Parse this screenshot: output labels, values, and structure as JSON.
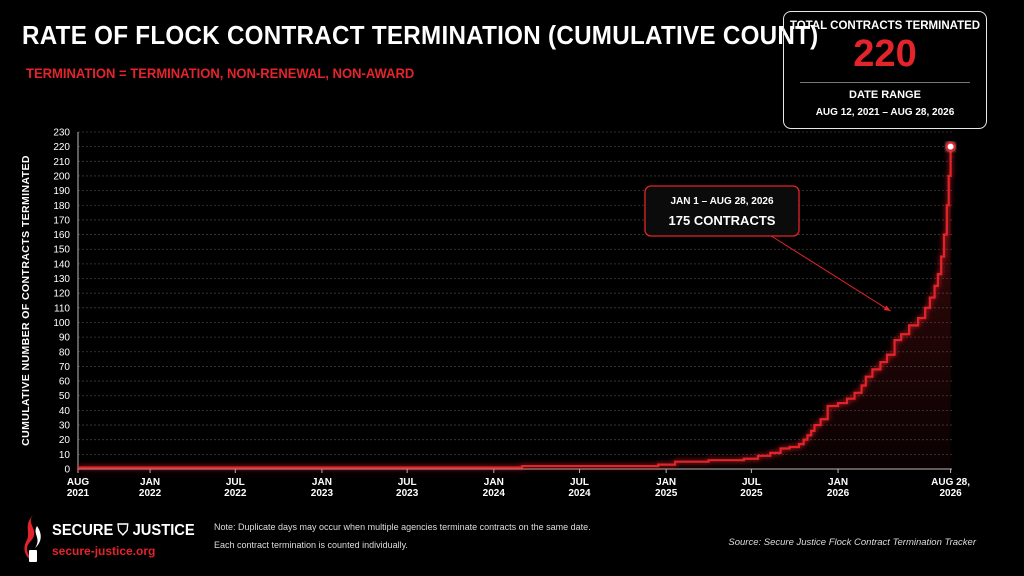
{
  "header": {
    "title": "RATE OF FLOCK CONTRACT TERMINATION (CUMULATIVE COUNT)",
    "subtitle": "TERMINATION = TERMINATION, NON-RENEWAL, NON-AWARD"
  },
  "stat_box": {
    "label": "TOTAL CONTRACTS TERMINATED",
    "value": "220",
    "range_label": "DATE RANGE",
    "range_value": "AUG 12, 2021 – AUG 28, 2026"
  },
  "colors": {
    "accent": "#e4242b",
    "background": "#000000",
    "grid": "#444444"
  },
  "chart_data": {
    "type": "line",
    "title": "RATE OF FLOCK CONTRACT TERMINATION (CUMULATIVE COUNT)",
    "subtitle": "TERMINATION = TERMINATION, NON-RENEWAL, NON-AWARD",
    "ylabel": "CUMULATIVE NUMBER OF CONTRACTS TERMINATED",
    "xlabel": "",
    "ylim": [
      0,
      230
    ],
    "yticks": [
      0,
      10,
      20,
      30,
      40,
      50,
      60,
      70,
      80,
      90,
      100,
      110,
      120,
      130,
      140,
      150,
      160,
      170,
      180,
      190,
      200,
      210,
      220,
      230
    ],
    "xlim": [
      "2021-08-01",
      "2026-08-31"
    ],
    "xticks": [
      {
        "date": "2021-08-01",
        "label": [
          "AUG",
          "2021"
        ]
      },
      {
        "date": "2022-01-01",
        "label": [
          "JAN",
          "2022"
        ]
      },
      {
        "date": "2022-07-01",
        "label": [
          "JUL",
          "2022"
        ]
      },
      {
        "date": "2023-01-01",
        "label": [
          "JAN",
          "2023"
        ]
      },
      {
        "date": "2023-07-01",
        "label": [
          "JUL",
          "2023"
        ]
      },
      {
        "date": "2024-01-01",
        "label": [
          "JAN",
          "2024"
        ]
      },
      {
        "date": "2024-07-01",
        "label": [
          "JUL",
          "2024"
        ]
      },
      {
        "date": "2025-01-01",
        "label": [
          "JAN",
          "2025"
        ]
      },
      {
        "date": "2025-07-01",
        "label": [
          "JUL",
          "2025"
        ]
      },
      {
        "date": "2026-01-01",
        "label": [
          "JAN",
          "2026"
        ]
      },
      {
        "date": "2026-08-28",
        "label": [
          "AUG 28,",
          "2026"
        ]
      }
    ],
    "grid": true,
    "legend": "none",
    "series": [
      {
        "x": [
          "2021-08-12",
          "2024-03-01",
          "2024-12-15",
          "2025-01-20",
          "2025-04-01",
          "2025-06-15",
          "2025-07-15",
          "2025-08-10",
          "2025-09-01",
          "2025-09-20",
          "2025-10-10",
          "2025-10-20",
          "2025-10-28",
          "2025-11-05",
          "2025-11-12",
          "2025-11-25",
          "2025-12-10",
          "2026-01-01",
          "2026-01-20",
          "2026-02-05",
          "2026-02-20",
          "2026-03-01",
          "2026-03-15",
          "2026-04-01",
          "2026-04-15",
          "2026-05-01",
          "2026-05-15",
          "2026-06-01",
          "2026-06-20",
          "2026-07-05",
          "2026-07-15",
          "2026-07-25",
          "2026-08-01",
          "2026-08-08",
          "2026-08-14",
          "2026-08-20",
          "2026-08-24",
          "2026-08-28"
        ],
        "y": [
          1,
          2,
          3,
          5,
          6,
          7,
          9,
          11,
          14,
          15,
          17,
          20,
          23,
          26,
          30,
          34,
          43,
          45,
          48,
          52,
          57,
          63,
          68,
          73,
          78,
          88,
          92,
          98,
          103,
          110,
          117,
          125,
          133,
          145,
          160,
          180,
          200,
          220
        ]
      }
    ],
    "annotations": [
      {
        "text_line1": "JAN 1 – AUG 28, 2026",
        "text_line2": "175 CONTRACTS",
        "points_to_date": "2026-05-01",
        "points_to_y": 105
      }
    ]
  },
  "footer": {
    "note_line1": "Note: Duplicate days may occur when multiple agencies terminate contracts on the same date.",
    "note_line2": "Each contract termination is counted individually.",
    "source": "Source: Secure Justice Flock Contract Termination Tracker"
  },
  "logo": {
    "name": "SECURE ⛉ JUSTICE",
    "url": "secure-justice.org"
  }
}
